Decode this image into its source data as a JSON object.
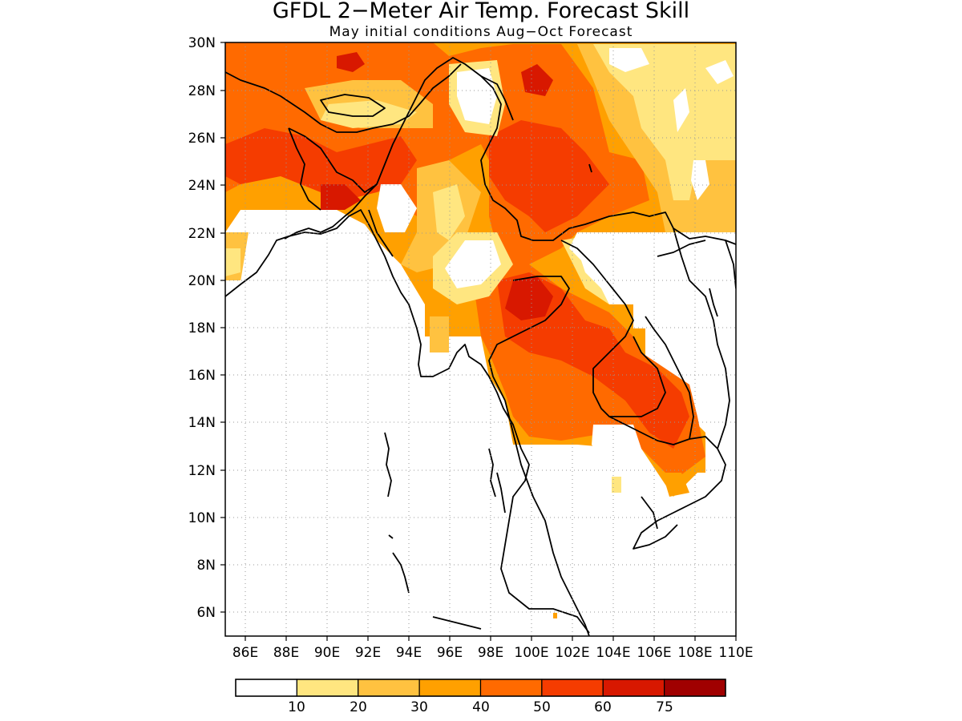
{
  "title": "GFDL 2−Meter Air Temp. Forecast Skill",
  "subtitle": "May initial conditions  Aug−Oct Forecast",
  "map": {
    "lon_range": [
      85,
      110
    ],
    "lat_range": [
      5,
      30
    ],
    "lon_ticks": [
      "86E",
      "88E",
      "90E",
      "92E",
      "94E",
      "96E",
      "98E",
      "100E",
      "102E",
      "104E",
      "106E",
      "108E",
      "110E"
    ],
    "lat_ticks": [
      "30N",
      "28N",
      "26N",
      "24N",
      "22N",
      "20N",
      "18N",
      "16N",
      "14N",
      "12N",
      "10N",
      "8N",
      "6N"
    ],
    "gridlines": "dotted"
  },
  "colorbar": {
    "labels": [
      "10",
      "20",
      "30",
      "40",
      "50",
      "60",
      "75"
    ],
    "colors": [
      "#ffffff",
      "#ffe680",
      "#ffc240",
      "#ffa000",
      "#ff6a00",
      "#f53c00",
      "#d81800",
      "#a00000"
    ]
  }
}
